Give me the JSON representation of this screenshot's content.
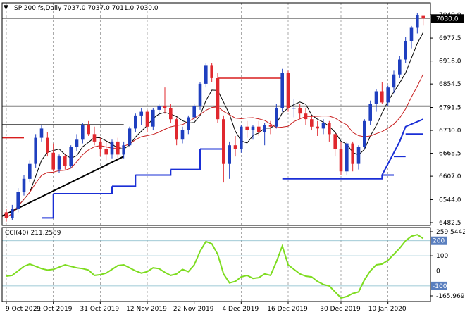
{
  "header": {
    "symbol_line": "SPI200.fs,Daily",
    "ohlc": "7037.0 7037.0 7011.0 7030.0"
  },
  "colors": {
    "bull": "#1f3fbf",
    "bear": "#e0282e",
    "fast_ma": "#000000",
    "slow_ma": "#c81f1f",
    "supertrend": "#1a2fd6",
    "cci": "#7ddc1f",
    "support_line": "#000000",
    "resistance_red": "#d81e1e",
    "grid": "#000000",
    "axis_bg": "#000000",
    "axis_text": "#ffffff"
  },
  "chart_data": [
    {
      "type": "candlestick",
      "title": "SPI200.fs,Daily",
      "yticks": [
        6482.5,
        6544.0,
        6607.0,
        6668.5,
        6730.0,
        6791.5,
        6854.5,
        6916.0,
        6977.5,
        7040.0
      ],
      "ytick_labels": [
        "6482.5",
        "6544.0",
        "6607.0",
        "6668.5",
        "6730.0",
        "6791.5",
        "6854.5",
        "6916.0",
        "6977.5",
        "7040.0"
      ],
      "ylim": [
        6482.5,
        7040.0
      ],
      "last_price_label": "7030.0",
      "xtick_labels": [
        "9 Oct 2019",
        "21 Oct 2019",
        "31 Oct 2019",
        "12 Nov 2019",
        "22 Nov 2019",
        "4 Dec 2019",
        "16 Dec 2019",
        "30 Dec 2019",
        "10 Jan 2020"
      ],
      "xtick_index": [
        0,
        8,
        16,
        24,
        32,
        40,
        48,
        57,
        65
      ],
      "ohlc": [
        [
          6510,
          6520,
          6485,
          6495
        ],
        [
          6495,
          6530,
          6490,
          6520
        ],
        [
          6520,
          6575,
          6510,
          6565
        ],
        [
          6565,
          6610,
          6555,
          6600
        ],
        [
          6600,
          6650,
          6590,
          6640
        ],
        [
          6640,
          6720,
          6630,
          6710
        ],
        [
          6710,
          6745,
          6700,
          6735
        ],
        [
          6710,
          6725,
          6660,
          6670
        ],
        [
          6670,
          6695,
          6620,
          6625
        ],
        [
          6625,
          6665,
          6615,
          6660
        ],
        [
          6660,
          6665,
          6625,
          6635
        ],
        [
          6635,
          6690,
          6630,
          6685
        ],
        [
          6685,
          6720,
          6675,
          6705
        ],
        [
          6705,
          6750,
          6695,
          6745
        ],
        [
          6745,
          6755,
          6715,
          6720
        ],
        [
          6720,
          6740,
          6690,
          6700
        ],
        [
          6700,
          6710,
          6660,
          6680
        ],
        [
          6680,
          6700,
          6650,
          6665
        ],
        [
          6665,
          6705,
          6655,
          6700
        ],
        [
          6700,
          6710,
          6655,
          6665
        ],
        [
          6665,
          6700,
          6655,
          6690
        ],
        [
          6690,
          6740,
          6685,
          6735
        ],
        [
          6735,
          6775,
          6725,
          6770
        ],
        [
          6770,
          6790,
          6745,
          6780
        ],
        [
          6780,
          6785,
          6725,
          6740
        ],
        [
          6740,
          6790,
          6730,
          6785
        ],
        [
          6785,
          6800,
          6770,
          6795
        ],
        [
          6795,
          6845,
          6775,
          6790
        ],
        [
          6790,
          6800,
          6750,
          6760
        ],
        [
          6760,
          6765,
          6690,
          6705
        ],
        [
          6705,
          6740,
          6695,
          6730
        ],
        [
          6730,
          6770,
          6720,
          6765
        ],
        [
          6765,
          6800,
          6755,
          6795
        ],
        [
          6795,
          6860,
          6785,
          6855
        ],
        [
          6855,
          6910,
          6845,
          6905
        ],
        [
          6905,
          6910,
          6860,
          6870
        ],
        [
          6870,
          6885,
          6750,
          6760
        ],
        [
          6760,
          6770,
          6590,
          6640
        ],
        [
          6640,
          6700,
          6600,
          6690
        ],
        [
          6690,
          6715,
          6660,
          6680
        ],
        [
          6680,
          6745,
          6670,
          6740
        ],
        [
          6740,
          6755,
          6710,
          6730
        ],
        [
          6730,
          6745,
          6705,
          6740
        ],
        [
          6740,
          6755,
          6715,
          6725
        ],
        [
          6725,
          6750,
          6690,
          6745
        ],
        [
          6745,
          6755,
          6720,
          6740
        ],
        [
          6740,
          6800,
          6735,
          6790
        ],
        [
          6790,
          6895,
          6780,
          6885
        ],
        [
          6885,
          6890,
          6780,
          6790
        ],
        [
          6790,
          6815,
          6765,
          6790
        ],
        [
          6790,
          6800,
          6760,
          6775
        ],
        [
          6775,
          6790,
          6745,
          6760
        ],
        [
          6760,
          6770,
          6730,
          6740
        ],
        [
          6740,
          6755,
          6715,
          6735
        ],
        [
          6735,
          6760,
          6720,
          6750
        ],
        [
          6750,
          6755,
          6700,
          6720
        ],
        [
          6720,
          6725,
          6660,
          6680
        ],
        [
          6680,
          6700,
          6610,
          6620
        ],
        [
          6620,
          6700,
          6610,
          6695
        ],
        [
          6695,
          6700,
          6620,
          6640
        ],
        [
          6640,
          6690,
          6625,
          6685
        ],
        [
          6685,
          6760,
          6680,
          6755
        ],
        [
          6755,
          6810,
          6745,
          6800
        ],
        [
          6800,
          6840,
          6780,
          6835
        ],
        [
          6835,
          6860,
          6800,
          6805
        ],
        [
          6805,
          6850,
          6795,
          6845
        ],
        [
          6845,
          6890,
          6830,
          6880
        ],
        [
          6880,
          6930,
          6870,
          6920
        ],
        [
          6920,
          6980,
          6910,
          6970
        ],
        [
          6970,
          7010,
          6950,
          7005
        ],
        [
          7005,
          7045,
          6990,
          7040
        ],
        [
          7037,
          7037,
          7011,
          7030
        ]
      ]
    },
    {
      "type": "line",
      "title": "CCI(40) 211.2589",
      "ylim": [
        -166,
        260
      ],
      "yticks": [
        259.5442,
        200,
        100,
        0,
        -100,
        -165.969
      ],
      "ytick_labels": [
        "259.5442",
        "200",
        "100",
        "0",
        "-100",
        "-165.969"
      ],
      "values": [
        -35,
        -30,
        0,
        30,
        45,
        30,
        15,
        5,
        10,
        25,
        40,
        30,
        20,
        15,
        5,
        -30,
        -25,
        -15,
        10,
        35,
        40,
        20,
        0,
        -15,
        -5,
        20,
        15,
        -10,
        -30,
        -20,
        10,
        -5,
        40,
        130,
        195,
        180,
        110,
        -20,
        -80,
        -70,
        -40,
        -30,
        -50,
        -45,
        -20,
        -30,
        60,
        165,
        40,
        10,
        -20,
        -35,
        -40,
        -70,
        -90,
        -100,
        -140,
        -180,
        -170,
        -150,
        -140,
        -60,
        0,
        40,
        45,
        70,
        110,
        150,
        200,
        230,
        240,
        215
      ]
    }
  ]
}
